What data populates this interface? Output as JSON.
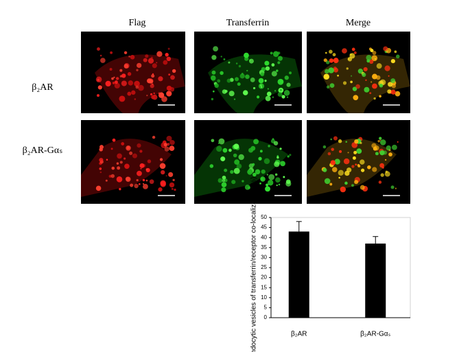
{
  "figure": {
    "column_labels": [
      "Flag",
      "Transferrin",
      "Merge"
    ],
    "row_labels": [
      "β₂AR",
      "β₂AR-Gαₛ"
    ]
  },
  "chart_data": {
    "type": "bar",
    "y_label": "Endocytic vesicles of transferrin/receptor co-localization (%)",
    "categories": [
      "β₂AR",
      "β₂AR-Gαₛ"
    ],
    "values": [
      43,
      37
    ],
    "errors": [
      5,
      3.5
    ],
    "color": "#000000",
    "ylim": [
      0,
      50
    ],
    "yticks": [
      0,
      5,
      10,
      15,
      20,
      25,
      30,
      35,
      40,
      45,
      50
    ]
  }
}
